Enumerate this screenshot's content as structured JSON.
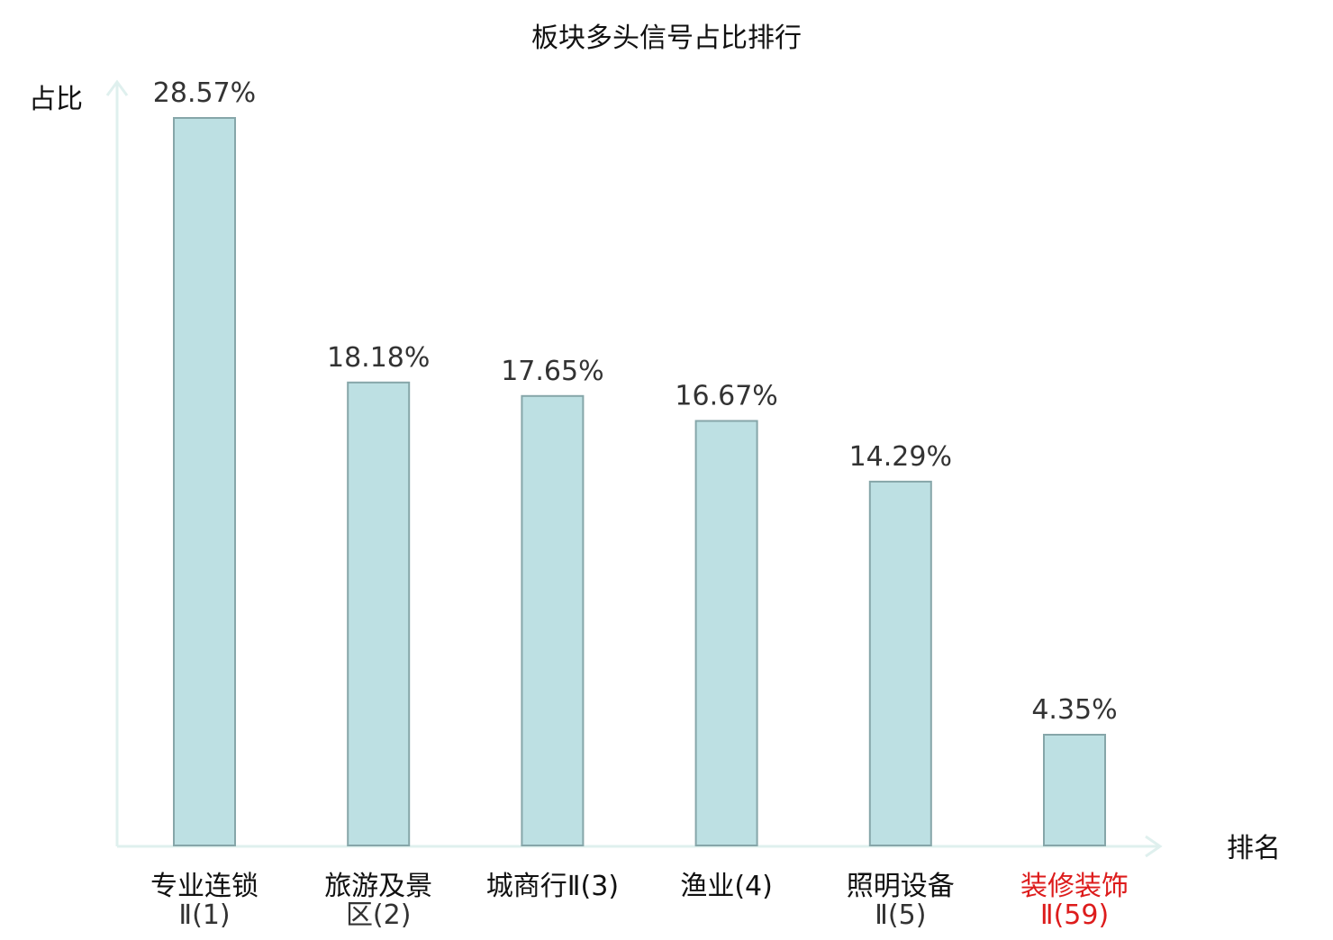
{
  "chart_data": {
    "type": "bar",
    "title": "板块多头信号占比排行",
    "xlabel": "排名",
    "ylabel": "占比",
    "categories": [
      {
        "line1": "专业连锁",
        "line2": "Ⅱ(1)",
        "highlight": false
      },
      {
        "line1": "旅游及景",
        "line2": "区(2)",
        "highlight": false
      },
      {
        "line1": "城商行Ⅱ(3)",
        "line2": "",
        "highlight": false
      },
      {
        "line1": "渔业(4)",
        "line2": "",
        "highlight": false
      },
      {
        "line1": "照明设备",
        "line2": "Ⅱ(5)",
        "highlight": false
      },
      {
        "line1": "装修装饰",
        "line2": "Ⅱ(59)",
        "highlight": true
      }
    ],
    "values": [
      28.57,
      18.18,
      17.65,
      16.67,
      14.29,
      4.35
    ],
    "value_labels": [
      "28.57%",
      "18.18%",
      "17.65%",
      "16.67%",
      "14.29%",
      "4.35%"
    ],
    "ylim": [
      0,
      30
    ],
    "grid": false,
    "legend": "none",
    "colors": {
      "bar_fill": "#bde0e3",
      "bar_stroke": "#86a6a9",
      "axis": "#dff0ee",
      "text": "#333333",
      "title_text": "#111111",
      "highlight_text": "#dd1c1c"
    }
  }
}
